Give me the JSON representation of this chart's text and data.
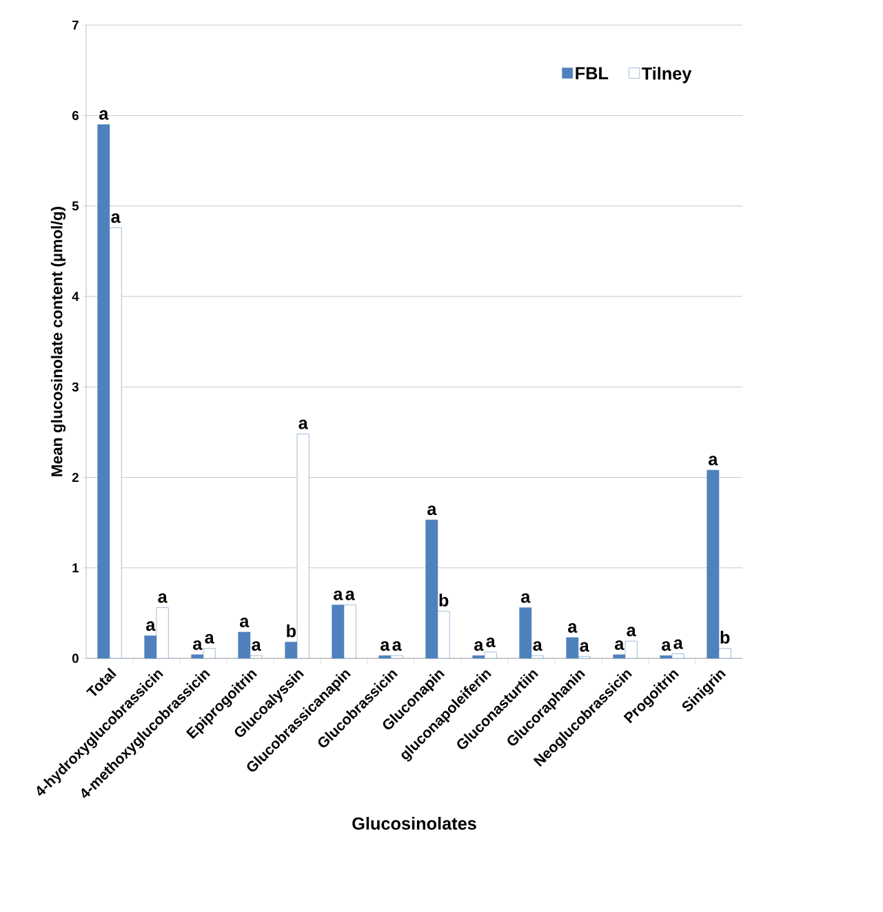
{
  "chart_data": {
    "type": "bar",
    "xlabel": "Glucosinolates",
    "ylabel": "Mean glucosinolate content (µmol/g)",
    "categories": [
      "Total",
      "4-hydroxyglucobrassicin",
      "4-methoxyglucobrassicin",
      "Epiprogoitrin",
      "Glucoalyssin",
      "Glucobrassicanapin",
      "Glucobrassicin",
      "Gluconapin",
      "gluconapoleiferin",
      "Gluconasturtiin",
      "Glucoraphanin",
      "Neoglucobrassicin",
      "Progoitrin",
      "Sinigrin"
    ],
    "series": [
      {
        "name": "FBL",
        "color": "#4f81bd",
        "values": [
          5.9,
          0.25,
          0.04,
          0.29,
          0.18,
          0.59,
          0.03,
          1.53,
          0.03,
          0.56,
          0.23,
          0.04,
          0.03,
          2.08
        ],
        "value_labels": [
          "a",
          "a",
          "a",
          "a",
          "b",
          "a",
          "a",
          "a",
          "a",
          "a",
          "a",
          "a",
          "a",
          "a"
        ]
      },
      {
        "name": "Tilney",
        "color": "#ffffff",
        "values": [
          4.76,
          0.56,
          0.11,
          0.03,
          2.48,
          0.59,
          0.03,
          0.52,
          0.07,
          0.03,
          0.02,
          0.19,
          0.05,
          0.11
        ],
        "value_labels": [
          "a",
          "a",
          "a",
          "a",
          "a",
          "a",
          "a",
          "b",
          "a",
          "a",
          "a",
          "a",
          "a",
          "b"
        ]
      }
    ],
    "ylim": [
      0,
      7
    ],
    "yticks": [
      0,
      1,
      2,
      3,
      4,
      5,
      6,
      7
    ],
    "grid": "y",
    "legend": "top right"
  }
}
